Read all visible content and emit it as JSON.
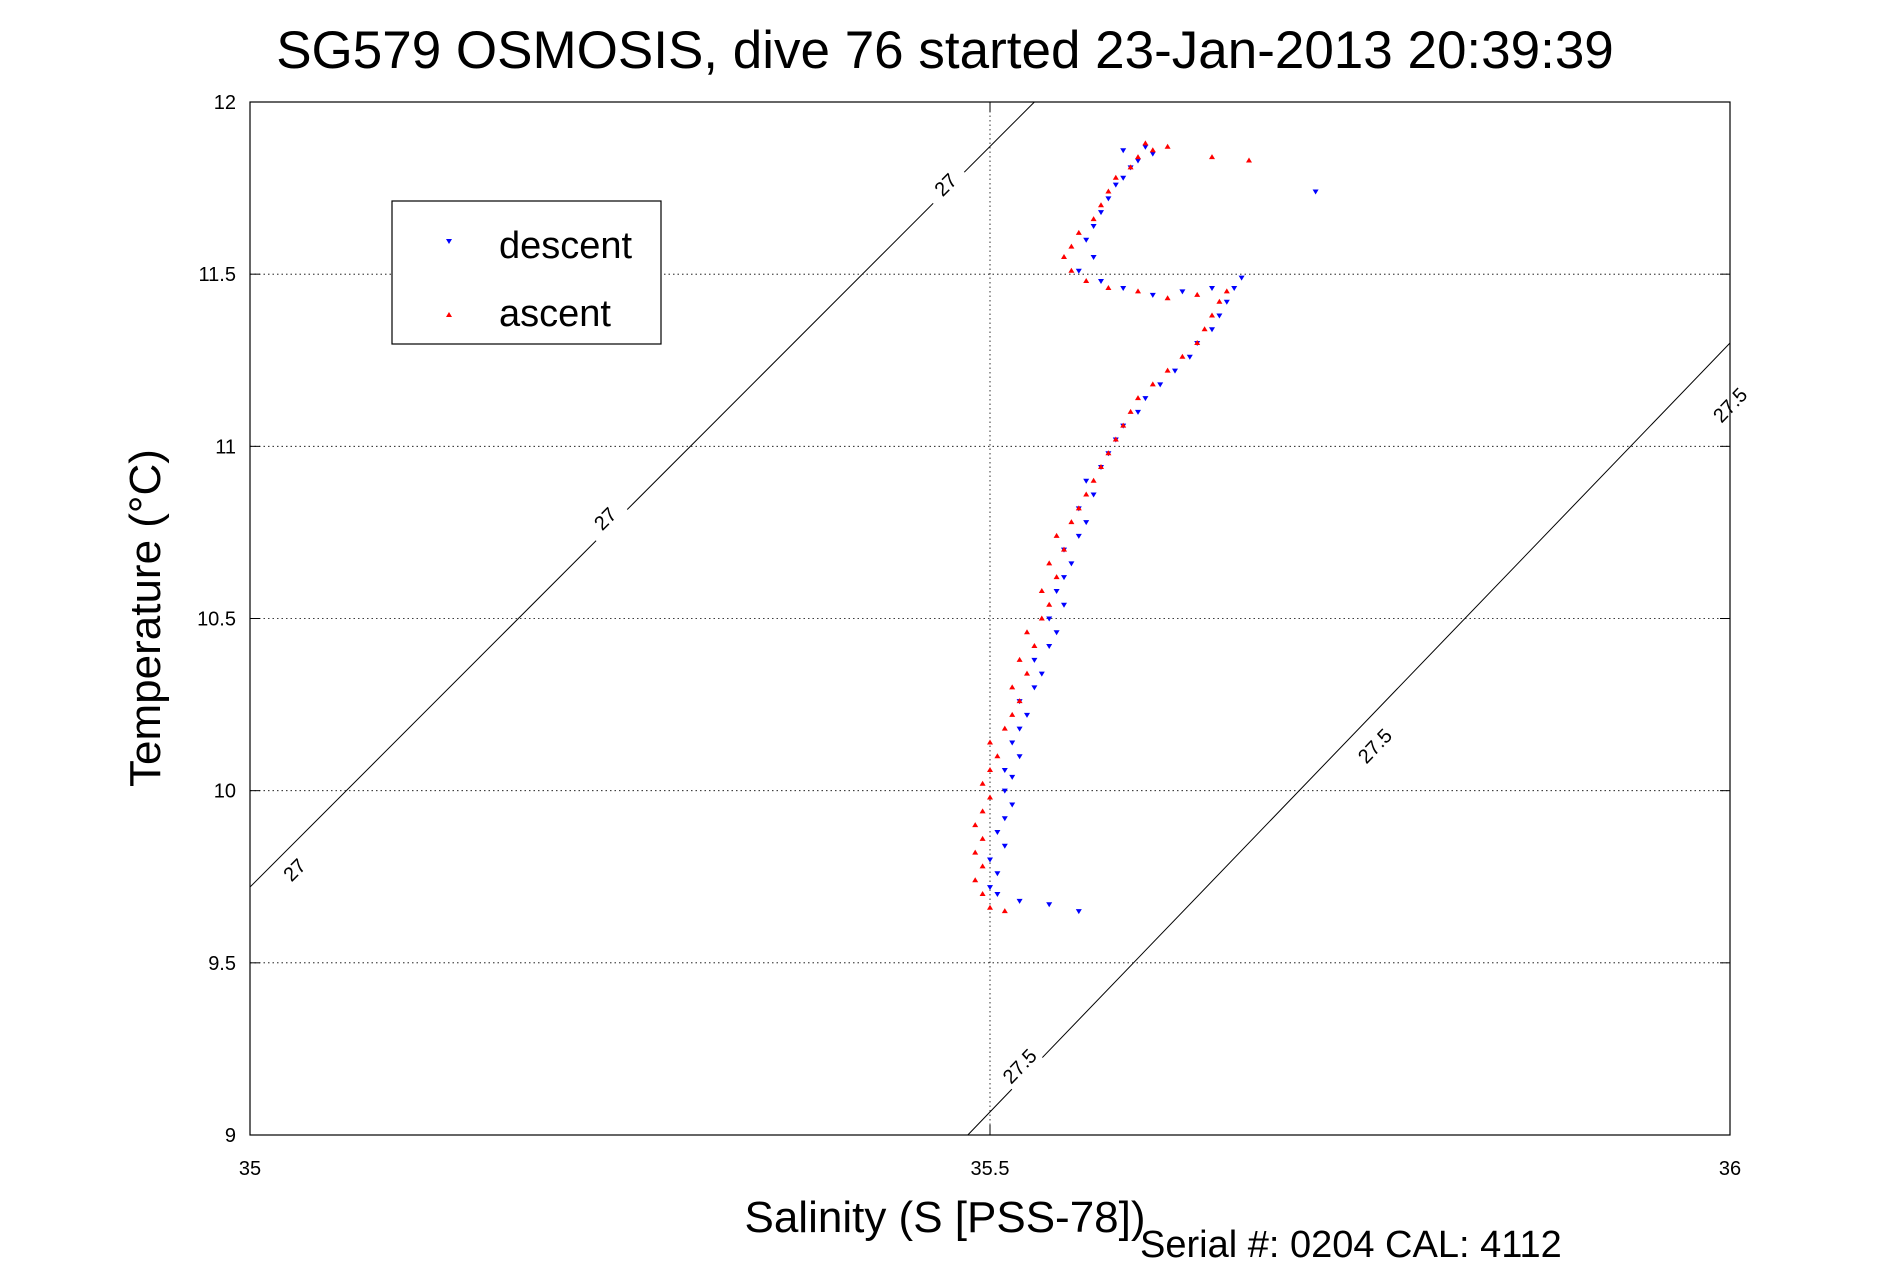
{
  "chart_data": {
    "type": "scatter",
    "title": "SG579 OSMOSIS, dive 76 started 23-Jan-2013 20:39:39",
    "xlabel": "Salinity (S [PSS-78])",
    "ylabel": "Temperature (°C)",
    "xlim": [
      35,
      36
    ],
    "ylim": [
      9,
      12
    ],
    "x_ticks": [
      "35",
      "35.5",
      "36"
    ],
    "y_ticks": [
      "9",
      "9.5",
      "10",
      "10.5",
      "11",
      "11.5",
      "12"
    ],
    "x_tick_values": [
      35,
      35.5,
      36
    ],
    "y_tick_values": [
      9,
      9.5,
      10,
      10.5,
      11,
      11.5,
      12
    ],
    "grid": true,
    "legend_position": "upper-left",
    "footer": "Serial #: 0204  CAL: 4112",
    "density_contours": [
      {
        "label": "27",
        "points": [
          [
            35.0,
            9.72
          ],
          [
            35.53,
            12.0
          ]
        ],
        "label_positions": [
          [
            35.03,
            9.77
          ],
          [
            35.24,
            10.79
          ],
          [
            35.47,
            11.76
          ]
        ]
      },
      {
        "label": "27.5",
        "points": [
          [
            35.485,
            9.0
          ],
          [
            36.0,
            11.3
          ]
        ],
        "label_positions": [
          [
            35.52,
            9.2
          ],
          [
            35.76,
            10.13
          ],
          [
            36.0,
            11.12
          ]
        ]
      }
    ],
    "series": [
      {
        "name": "descent",
        "color": "#0000ff",
        "marker": "triangle-down",
        "points": [
          [
            35.56,
            9.65
          ],
          [
            35.54,
            9.67
          ],
          [
            35.52,
            9.68
          ],
          [
            35.505,
            9.7
          ],
          [
            35.5,
            9.72
          ],
          [
            35.505,
            9.76
          ],
          [
            35.5,
            9.8
          ],
          [
            35.51,
            9.84
          ],
          [
            35.505,
            9.88
          ],
          [
            35.51,
            9.92
          ],
          [
            35.515,
            9.96
          ],
          [
            35.51,
            10.0
          ],
          [
            35.515,
            10.04
          ],
          [
            35.51,
            10.06
          ],
          [
            35.52,
            10.1
          ],
          [
            35.515,
            10.14
          ],
          [
            35.52,
            10.18
          ],
          [
            35.525,
            10.22
          ],
          [
            35.52,
            10.26
          ],
          [
            35.53,
            10.3
          ],
          [
            35.535,
            10.34
          ],
          [
            35.53,
            10.38
          ],
          [
            35.54,
            10.42
          ],
          [
            35.545,
            10.46
          ],
          [
            35.54,
            10.5
          ],
          [
            35.55,
            10.54
          ],
          [
            35.545,
            10.58
          ],
          [
            35.55,
            10.62
          ],
          [
            35.555,
            10.66
          ],
          [
            35.55,
            10.7
          ],
          [
            35.56,
            10.74
          ],
          [
            35.565,
            10.78
          ],
          [
            35.56,
            10.82
          ],
          [
            35.57,
            10.86
          ],
          [
            35.565,
            10.9
          ],
          [
            35.575,
            10.94
          ],
          [
            35.58,
            10.98
          ],
          [
            35.585,
            11.02
          ],
          [
            35.59,
            11.06
          ],
          [
            35.6,
            11.1
          ],
          [
            35.605,
            11.14
          ],
          [
            35.615,
            11.18
          ],
          [
            35.625,
            11.22
          ],
          [
            35.635,
            11.26
          ],
          [
            35.64,
            11.3
          ],
          [
            35.65,
            11.34
          ],
          [
            35.655,
            11.38
          ],
          [
            35.66,
            11.42
          ],
          [
            35.665,
            11.46
          ],
          [
            35.67,
            11.49
          ],
          [
            35.65,
            11.46
          ],
          [
            35.63,
            11.45
          ],
          [
            35.61,
            11.44
          ],
          [
            35.59,
            11.46
          ],
          [
            35.575,
            11.48
          ],
          [
            35.56,
            11.51
          ],
          [
            35.57,
            11.55
          ],
          [
            35.565,
            11.6
          ],
          [
            35.57,
            11.64
          ],
          [
            35.575,
            11.68
          ],
          [
            35.58,
            11.72
          ],
          [
            35.585,
            11.76
          ],
          [
            35.59,
            11.78
          ],
          [
            35.595,
            11.81
          ],
          [
            35.6,
            11.83
          ],
          [
            35.61,
            11.85
          ],
          [
            35.605,
            11.87
          ],
          [
            35.59,
            11.86
          ],
          [
            35.72,
            11.74
          ]
        ]
      },
      {
        "name": "ascent",
        "color": "#ff0000",
        "marker": "triangle-up",
        "points": [
          [
            35.5,
            9.66
          ],
          [
            35.51,
            9.65
          ],
          [
            35.495,
            9.7
          ],
          [
            35.49,
            9.74
          ],
          [
            35.495,
            9.78
          ],
          [
            35.49,
            9.82
          ],
          [
            35.495,
            9.86
          ],
          [
            35.49,
            9.9
          ],
          [
            35.495,
            9.94
          ],
          [
            35.5,
            9.98
          ],
          [
            35.495,
            10.02
          ],
          [
            35.5,
            10.06
          ],
          [
            35.505,
            10.1
          ],
          [
            35.5,
            10.14
          ],
          [
            35.51,
            10.18
          ],
          [
            35.515,
            10.22
          ],
          [
            35.52,
            10.26
          ],
          [
            35.515,
            10.3
          ],
          [
            35.525,
            10.34
          ],
          [
            35.52,
            10.38
          ],
          [
            35.53,
            10.42
          ],
          [
            35.525,
            10.46
          ],
          [
            35.535,
            10.5
          ],
          [
            35.54,
            10.54
          ],
          [
            35.535,
            10.58
          ],
          [
            35.545,
            10.62
          ],
          [
            35.54,
            10.66
          ],
          [
            35.55,
            10.7
          ],
          [
            35.545,
            10.74
          ],
          [
            35.555,
            10.78
          ],
          [
            35.56,
            10.82
          ],
          [
            35.565,
            10.86
          ],
          [
            35.57,
            10.9
          ],
          [
            35.575,
            10.94
          ],
          [
            35.58,
            10.98
          ],
          [
            35.585,
            11.02
          ],
          [
            35.59,
            11.06
          ],
          [
            35.595,
            11.1
          ],
          [
            35.6,
            11.14
          ],
          [
            35.61,
            11.18
          ],
          [
            35.62,
            11.22
          ],
          [
            35.63,
            11.26
          ],
          [
            35.64,
            11.3
          ],
          [
            35.645,
            11.34
          ],
          [
            35.65,
            11.38
          ],
          [
            35.655,
            11.42
          ],
          [
            35.66,
            11.45
          ],
          [
            35.64,
            11.44
          ],
          [
            35.62,
            11.43
          ],
          [
            35.6,
            11.45
          ],
          [
            35.58,
            11.46
          ],
          [
            35.565,
            11.48
          ],
          [
            35.555,
            11.51
          ],
          [
            35.55,
            11.55
          ],
          [
            35.555,
            11.58
          ],
          [
            35.56,
            11.62
          ],
          [
            35.57,
            11.66
          ],
          [
            35.575,
            11.7
          ],
          [
            35.58,
            11.74
          ],
          [
            35.585,
            11.78
          ],
          [
            35.595,
            11.81
          ],
          [
            35.6,
            11.84
          ],
          [
            35.605,
            11.88
          ],
          [
            35.61,
            11.86
          ],
          [
            35.62,
            11.87
          ],
          [
            35.65,
            11.84
          ],
          [
            35.675,
            11.83
          ]
        ]
      }
    ]
  }
}
